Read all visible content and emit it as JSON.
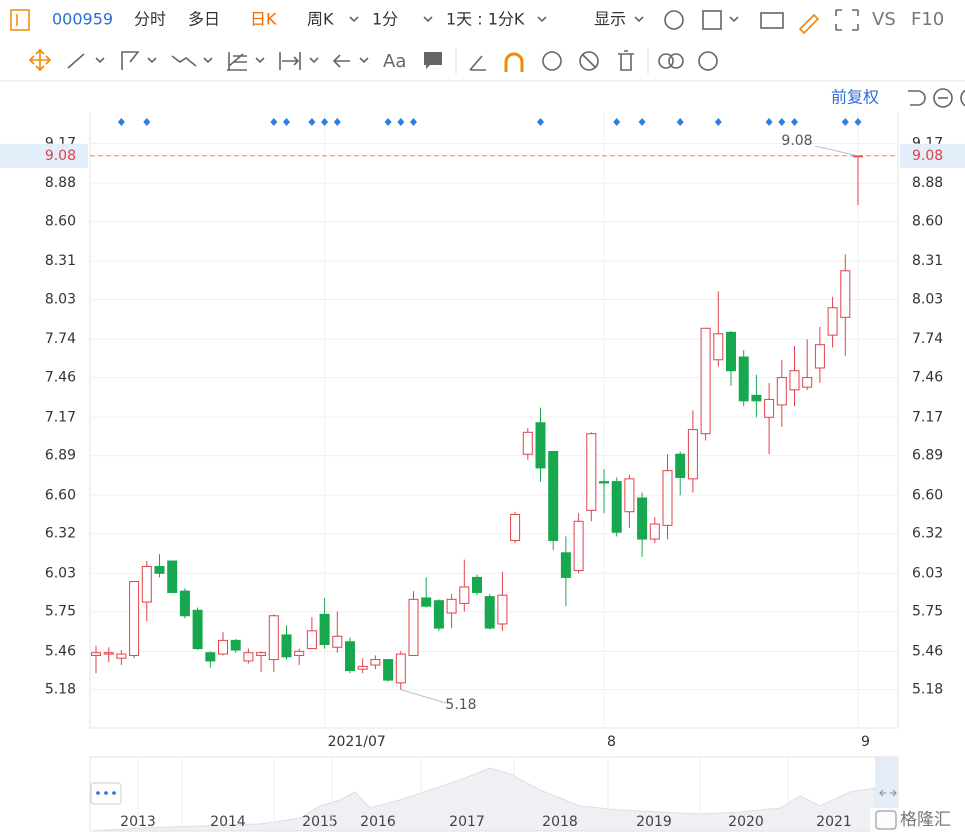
{
  "toolbar": {
    "code": "000959",
    "tabs": [
      "分时",
      "多日",
      "日K",
      "周K",
      "1分",
      "1天 : 1分K"
    ],
    "display": "显示",
    "vs": "VS",
    "f10": "F10",
    "adjust": "前复权"
  },
  "chart_data": {
    "type": "candlestick",
    "categories": [
      null,
      null,
      null,
      null,
      null,
      null,
      null,
      null,
      null,
      null,
      null,
      null,
      null,
      null,
      null,
      null,
      null,
      null,
      "2021/07",
      null,
      null,
      null,
      null,
      null,
      null,
      null,
      null,
      null,
      null,
      null,
      null,
      null,
      null,
      null,
      null,
      null,
      null,
      null,
      null,
      null,
      "8",
      null,
      null,
      null,
      null,
      null,
      null,
      null,
      null,
      null,
      null,
      null,
      null,
      null,
      null,
      null,
      null,
      null,
      null,
      null,
      "9"
    ],
    "open": [
      5.43,
      5.44,
      5.41,
      5.43,
      5.82,
      6.08,
      6.12,
      5.9,
      5.76,
      5.45,
      5.44,
      5.54,
      5.39,
      5.43,
      5.4,
      5.58,
      5.43,
      5.48,
      5.73,
      5.49,
      5.53,
      5.33,
      5.36,
      5.4,
      5.23,
      5.43,
      5.85,
      5.83,
      5.74,
      5.81,
      6.0,
      5.86,
      5.66,
      6.27,
      6.9,
      7.13,
      6.92,
      6.18,
      6.05,
      6.49,
      6.7,
      6.7,
      6.48,
      6.58,
      6.28,
      6.38,
      6.9,
      6.72,
      7.05,
      7.59,
      7.79,
      7.61,
      7.33,
      7.17,
      7.26,
      7.37,
      7.39,
      7.53,
      7.77,
      7.9,
      9.08
    ],
    "high": [
      5.5,
      5.49,
      5.47,
      5.97,
      6.12,
      6.17,
      6.12,
      5.92,
      5.78,
      5.46,
      5.6,
      5.55,
      5.48,
      5.46,
      5.73,
      5.65,
      5.48,
      5.71,
      5.85,
      5.75,
      5.56,
      5.41,
      5.43,
      5.4,
      5.46,
      5.9,
      6.0,
      5.84,
      5.88,
      6.13,
      6.02,
      5.88,
      6.04,
      6.48,
      7.09,
      7.24,
      6.92,
      6.3,
      6.47,
      7.06,
      6.79,
      6.73,
      6.75,
      6.62,
      6.44,
      6.9,
      6.92,
      7.22,
      7.82,
      8.09,
      7.8,
      7.66,
      7.48,
      7.42,
      7.59,
      7.69,
      7.74,
      7.83,
      8.05,
      8.36,
      9.08
    ],
    "low": [
      5.3,
      5.38,
      5.36,
      5.41,
      5.68,
      6.0,
      5.89,
      5.7,
      5.47,
      5.34,
      5.43,
      5.45,
      5.37,
      5.31,
      5.31,
      5.4,
      5.36,
      5.48,
      5.48,
      5.45,
      5.3,
      5.3,
      5.33,
      5.24,
      5.18,
      5.43,
      5.78,
      5.61,
      5.63,
      5.75,
      5.87,
      5.62,
      5.61,
      6.25,
      6.86,
      6.7,
      6.2,
      5.79,
      6.03,
      6.41,
      6.47,
      6.3,
      6.36,
      6.15,
      6.25,
      6.28,
      6.6,
      6.62,
      7.0,
      7.54,
      7.4,
      7.25,
      7.17,
      6.9,
      7.1,
      7.25,
      7.37,
      7.42,
      7.68,
      7.62,
      8.72
    ],
    "close": [
      5.45,
      5.45,
      5.44,
      5.97,
      6.08,
      6.03,
      5.89,
      5.72,
      5.48,
      5.39,
      5.54,
      5.47,
      5.45,
      5.45,
      5.72,
      5.42,
      5.46,
      5.61,
      5.51,
      5.57,
      5.32,
      5.35,
      5.4,
      5.25,
      5.44,
      5.84,
      5.79,
      5.63,
      5.84,
      5.93,
      5.89,
      5.63,
      5.87,
      6.46,
      7.06,
      6.8,
      6.27,
      6.0,
      6.41,
      7.05,
      6.69,
      6.33,
      6.72,
      6.28,
      6.39,
      6.78,
      6.73,
      7.08,
      7.82,
      7.78,
      7.51,
      7.29,
      7.29,
      7.3,
      7.46,
      7.51,
      7.46,
      7.7,
      7.97,
      8.24,
      9.08
    ],
    "up_color": "#e0424a",
    "down_color": "#17a84f",
    "ylim": [
      4.9,
      9.4
    ],
    "yticks": [
      9.17,
      8.88,
      {
        "value": 8.6,
        "label": "8.60"
      },
      8.31,
      8.03,
      7.74,
      7.46,
      7.17,
      6.89,
      {
        "value": 6.6,
        "label": "6.60"
      },
      6.32,
      6.03,
      5.75,
      5.46,
      5.18
    ],
    "grid": true,
    "high_marker": 9.08,
    "low_marker": 5.18,
    "last_price": 9.08
  },
  "navigator": {
    "years": [
      "2013",
      "2014",
      "2015",
      "2016",
      "2017",
      "2018",
      "2019",
      "2020",
      "2021"
    ]
  },
  "watermark": "格隆汇"
}
